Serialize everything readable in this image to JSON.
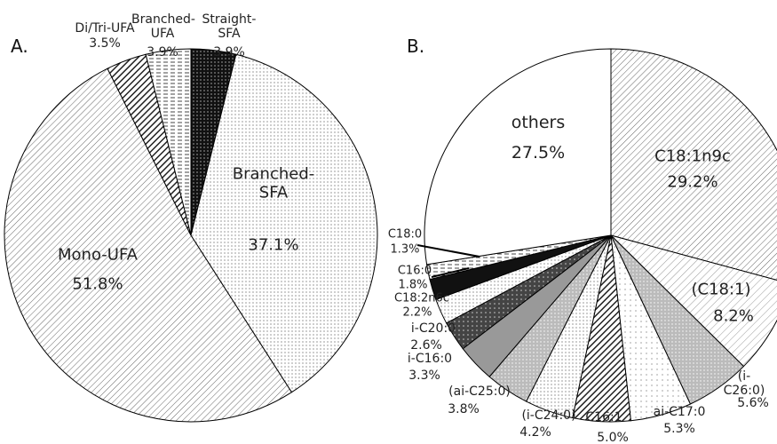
{
  "chart_data": [
    {
      "type": "pie",
      "title": "A.",
      "categories": [
        "Straight-SFA",
        "Branched-SFA",
        "Mono-UFA",
        "Di/Tri-UFA",
        "Branched-UFA"
      ],
      "values": [
        3.9,
        37.1,
        51.8,
        3.5,
        3.9
      ],
      "value_labels": [
        "3.9%",
        "37.1%",
        "51.8%",
        "3.5%",
        "3.9%"
      ]
    },
    {
      "type": "pie",
      "title": "B.",
      "categories": [
        "C18:1n9c",
        "(C18:1)",
        "(i-C26:0)",
        "ai-C17:0",
        "C16:1",
        "(i-C24:0)",
        "(ai-C25:0)",
        "i-C16:0",
        "i-C20:0",
        "C18:2n6c",
        "C16:0",
        "C18:0",
        "others"
      ],
      "values": [
        29.2,
        8.2,
        5.6,
        5.3,
        5.0,
        4.2,
        3.8,
        3.3,
        2.6,
        2.2,
        1.8,
        1.3,
        27.5
      ],
      "value_labels": [
        "29.2%",
        "8.2%",
        "5.6%",
        "5.3%",
        "5.0%",
        "4.2%",
        "3.8%",
        "3.3%",
        "2.6%",
        "2.2%",
        "1.8%",
        "1.3%",
        "27.5%"
      ]
    }
  ]
}
